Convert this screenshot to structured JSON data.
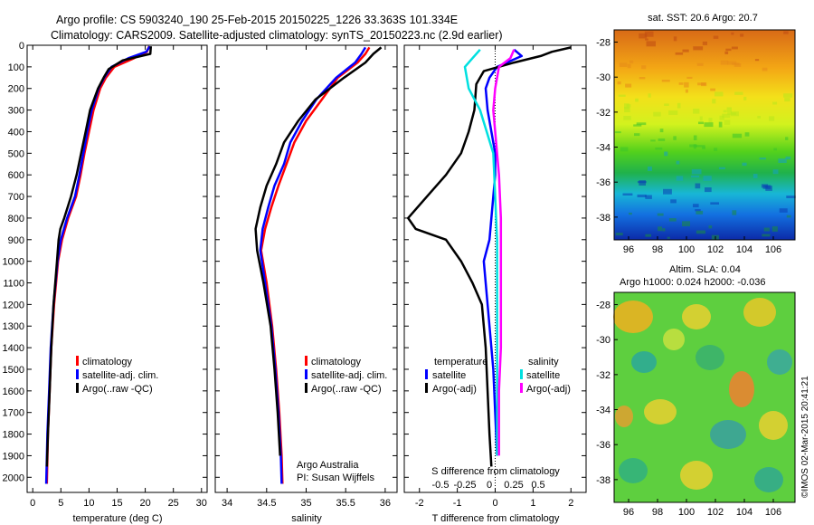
{
  "header": {
    "line1": "Argo profile: CS 5903240_190 25-Feb-2015 20150225_1226 33.363S 101.334E",
    "line2": "Climatology: CARS2009. Satellite-adjusted climatology: synTS_20150223.nc (2.9d earlier)"
  },
  "colors": {
    "climatology": "#ff0000",
    "satellite": "#0000ff",
    "argo": "#000000",
    "sat_salinity": "#00e0e0",
    "argo_salinity": "#ff00ff"
  },
  "chart_data": [
    {
      "type": "line",
      "xlabel": "temperature (deg C)",
      "xlim": [
        -1,
        31
      ],
      "ylim": [
        0,
        2070
      ],
      "y_reversed": true,
      "xticks": [
        0,
        5,
        10,
        15,
        20,
        25,
        30
      ],
      "yticks": [
        0,
        100,
        200,
        300,
        400,
        500,
        600,
        700,
        800,
        900,
        1000,
        1100,
        1200,
        1300,
        1400,
        1500,
        1600,
        1700,
        1800,
        1900,
        2000
      ],
      "legend": [
        "climatology",
        "satellite-adj. clim.",
        "Argo(..raw -QC)"
      ],
      "series": [
        {
          "name": "climatology",
          "color": "#ff0000",
          "y": [
            5,
            30,
            60,
            100,
            150,
            200,
            300,
            400,
            500,
            600,
            700,
            800,
            900,
            1000,
            1200,
            1400,
            1600,
            1800,
            2030
          ],
          "x": [
            20.7,
            20.3,
            18,
            14.5,
            13,
            12,
            10.8,
            10,
            9.2,
            8.5,
            7.7,
            6.3,
            5.2,
            4.5,
            3.8,
            3.3,
            3,
            2.7,
            2.5
          ]
        },
        {
          "name": "satellite-adj. clim.",
          "color": "#0000ff",
          "y": [
            5,
            30,
            60,
            100,
            150,
            200,
            300,
            400,
            500,
            600,
            700,
            800,
            900,
            1000,
            1200,
            1400,
            1600,
            1800,
            2030
          ],
          "x": [
            20.8,
            20.2,
            17,
            14,
            12.7,
            11.7,
            10.5,
            9.7,
            9,
            8.3,
            7.5,
            6.1,
            5,
            4.4,
            3.7,
            3.2,
            2.9,
            2.6,
            2.4
          ]
        },
        {
          "name": "Argo(..raw -QC)",
          "color": "#000000",
          "y": [
            5,
            40,
            70,
            110,
            150,
            200,
            300,
            400,
            500,
            600,
            700,
            800,
            850,
            900,
            1000,
            1100,
            1200,
            1400,
            1600,
            1800,
            1950
          ],
          "x": [
            21,
            20.9,
            16,
            13.5,
            12.6,
            11.6,
            10.2,
            9.4,
            8.6,
            7.8,
            6.8,
            5.6,
            4.9,
            4.6,
            4.3,
            4,
            3.7,
            3.3,
            3,
            2.7,
            2.5
          ]
        }
      ]
    },
    {
      "type": "line",
      "xlabel": "salinity",
      "xlim": [
        33.85,
        36.15
      ],
      "ylim": [
        0,
        2070
      ],
      "y_reversed": true,
      "xticks": [
        34,
        34.5,
        35,
        35.5,
        36
      ],
      "legend": [
        "climatology",
        "satellite-adj. clim.",
        "Argo(..raw -QC)"
      ],
      "annotation": [
        "Argo Australia",
        "PI: Susan Wijffels"
      ],
      "series": [
        {
          "name": "climatology",
          "color": "#ff0000",
          "y": [
            10,
            40,
            80,
            150,
            250,
            350,
            450,
            550,
            650,
            750,
            850,
            950,
            1100,
            1300,
            1500,
            1700,
            1900,
            2030
          ],
          "x": [
            35.8,
            35.75,
            35.65,
            35.4,
            35.2,
            35.0,
            34.85,
            34.75,
            34.65,
            34.56,
            34.48,
            34.43,
            34.5,
            34.57,
            34.62,
            34.66,
            34.69,
            34.7
          ]
        },
        {
          "name": "satellite-adj. clim.",
          "color": "#0000ff",
          "y": [
            10,
            40,
            80,
            150,
            250,
            350,
            450,
            550,
            650,
            750,
            850,
            950,
            1100,
            1300,
            1500,
            1700,
            1900,
            2030
          ],
          "x": [
            35.75,
            35.7,
            35.62,
            35.38,
            35.13,
            34.95,
            34.8,
            34.72,
            34.6,
            34.52,
            34.45,
            34.42,
            34.48,
            34.56,
            34.61,
            34.65,
            34.68,
            34.69
          ]
        },
        {
          "name": "Argo(..raw -QC)",
          "color": "#000000",
          "y": [
            10,
            40,
            80,
            150,
            250,
            350,
            450,
            550,
            650,
            750,
            850,
            950,
            1100,
            1300,
            1500,
            1700,
            1900
          ],
          "x": [
            35.95,
            35.85,
            35.75,
            35.48,
            35.12,
            34.9,
            34.72,
            34.62,
            34.5,
            34.42,
            34.36,
            34.38,
            34.46,
            34.55,
            34.6,
            34.64,
            34.67
          ]
        }
      ]
    },
    {
      "type": "line",
      "xlabel": "T difference from climatology",
      "secondary_xlabel": "S difference from climatology",
      "xlim": [
        -2.4,
        2.4
      ],
      "ylim": [
        0,
        2070
      ],
      "y_reversed": true,
      "xticks": [
        -2,
        -1,
        0,
        1,
        2
      ],
      "secondary_xticks": [
        "-0.5",
        "-0.25",
        "0",
        "0.25",
        "0.5"
      ],
      "legend_titles": [
        "temperature",
        "salinity"
      ],
      "legend": [
        "satellite",
        "Argo(-adj)",
        "satellite",
        "Argo(-adj)"
      ],
      "series": [
        {
          "name": "satellite",
          "color": "#0000ff",
          "y": [
            20,
            50,
            100,
            150,
            200,
            300,
            400,
            500,
            600,
            700,
            800,
            900,
            1000,
            1100,
            1300,
            1500,
            1700,
            1900
          ],
          "x": [
            0.5,
            0.7,
            0.05,
            -0.15,
            -0.25,
            -0.2,
            -0.1,
            0,
            0,
            -0.05,
            -0.1,
            -0.15,
            -0.3,
            -0.25,
            -0.15,
            -0.05,
            0,
            0.05
          ]
        },
        {
          "name": "Argo(-adj)",
          "color": "#000000",
          "y": [
            10,
            30,
            50,
            80,
            120,
            180,
            300,
            400,
            500,
            600,
            700,
            800,
            850,
            900,
            1000,
            1100,
            1200,
            1400,
            1600,
            1800,
            1950
          ],
          "x": [
            2,
            1.5,
            1.2,
            0.5,
            -0.3,
            -0.5,
            -0.55,
            -0.7,
            -0.9,
            -1.3,
            -1.8,
            -2.3,
            -2.1,
            -1.3,
            -0.9,
            -0.6,
            -0.35,
            -0.25,
            -0.2,
            -0.15,
            -0.1
          ]
        },
        {
          "name": "satellite (salinity)",
          "color": "#00e0e0",
          "y": [
            20,
            60,
            100,
            200,
            300,
            500,
            700,
            900,
            1100,
            1300,
            1600,
            1900
          ],
          "x": [
            -0.4,
            -0.6,
            -0.8,
            -0.7,
            -0.4,
            -0.05,
            0,
            0.05,
            0.05,
            0.05,
            0.05,
            0.05
          ]
        },
        {
          "name": "Argo(-adj) (salinity)",
          "color": "#ff00ff",
          "y": [
            20,
            60,
            100,
            200,
            300,
            400,
            600,
            800,
            1000,
            1200,
            1400,
            1600,
            1800,
            1900
          ],
          "x": [
            0.5,
            0.4,
            0.1,
            0,
            -0.05,
            0,
            0.1,
            0.15,
            0.15,
            0.15,
            0.15,
            0.1,
            0.1,
            0.1
          ]
        }
      ]
    },
    {
      "type": "heatmap",
      "title": "sat. SST: 20.6  Argo: 20.7",
      "xticks": [
        96,
        98,
        100,
        102,
        104,
        106
      ],
      "yticks": [
        -28,
        -30,
        -32,
        -34,
        -36,
        -38
      ]
    },
    {
      "type": "heatmap",
      "title": "Altim. SLA: 0.04",
      "subtitle": "Argo h1000: 0.024 h2000: -0.036",
      "xticks": [
        96,
        98,
        100,
        102,
        104,
        106
      ],
      "yticks": [
        -28,
        -30,
        -32,
        -34,
        -36,
        -38
      ]
    }
  ],
  "side_label": "©IMOS 02-Mar-2015 20:41:21"
}
